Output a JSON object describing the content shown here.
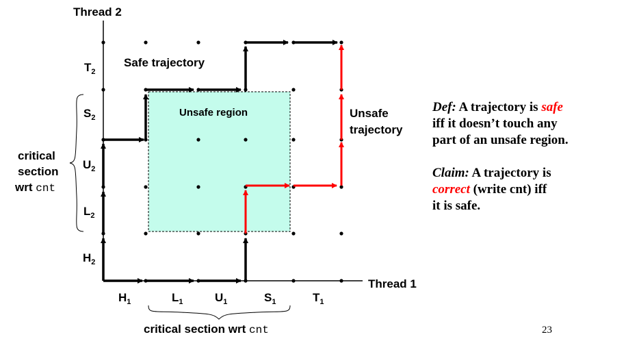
{
  "axes": {
    "thread1_label": "Thread 1",
    "thread2_label": "Thread 2"
  },
  "x_segments": [
    {
      "base": "H",
      "sub": "1"
    },
    {
      "base": "L",
      "sub": "1"
    },
    {
      "base": "U",
      "sub": "1"
    },
    {
      "base": "S",
      "sub": "1"
    },
    {
      "base": "T",
      "sub": "1"
    }
  ],
  "y_segments": [
    {
      "base": "H",
      "sub": "2"
    },
    {
      "base": "L",
      "sub": "2"
    },
    {
      "base": "U",
      "sub": "2"
    },
    {
      "base": "S",
      "sub": "2"
    },
    {
      "base": "T",
      "sub": "2"
    }
  ],
  "labels": {
    "safe_trajectory": "Safe trajectory",
    "unsafe_region": "Unsafe region",
    "unsafe_trajectory_line1": "Unsafe",
    "unsafe_trajectory_line2": "trajectory",
    "critical_y_line1": "critical",
    "critical_y_line2": "section",
    "critical_y_line3_prefix": "wrt ",
    "critical_x_prefix": "critical section wrt ",
    "cnt": "cnt"
  },
  "definition": {
    "def_label": "Def:",
    "def_text_1": " A trajectory is ",
    "def_safe": "safe",
    "def_text_2": "iff it doesn’t  touch any",
    "def_text_3": "part of an unsafe region.",
    "claim_label": "Claim:",
    "claim_text_1": " A trajectory is",
    "claim_correct": "correct",
    "claim_text_2": " (write cnt)  iff",
    "claim_text_3": "it is safe."
  },
  "page_number": "23",
  "colors": {
    "safe_path": "#000000",
    "unsafe_path": "#ff0000",
    "unsafe_region_fill": "#c4fcec"
  }
}
